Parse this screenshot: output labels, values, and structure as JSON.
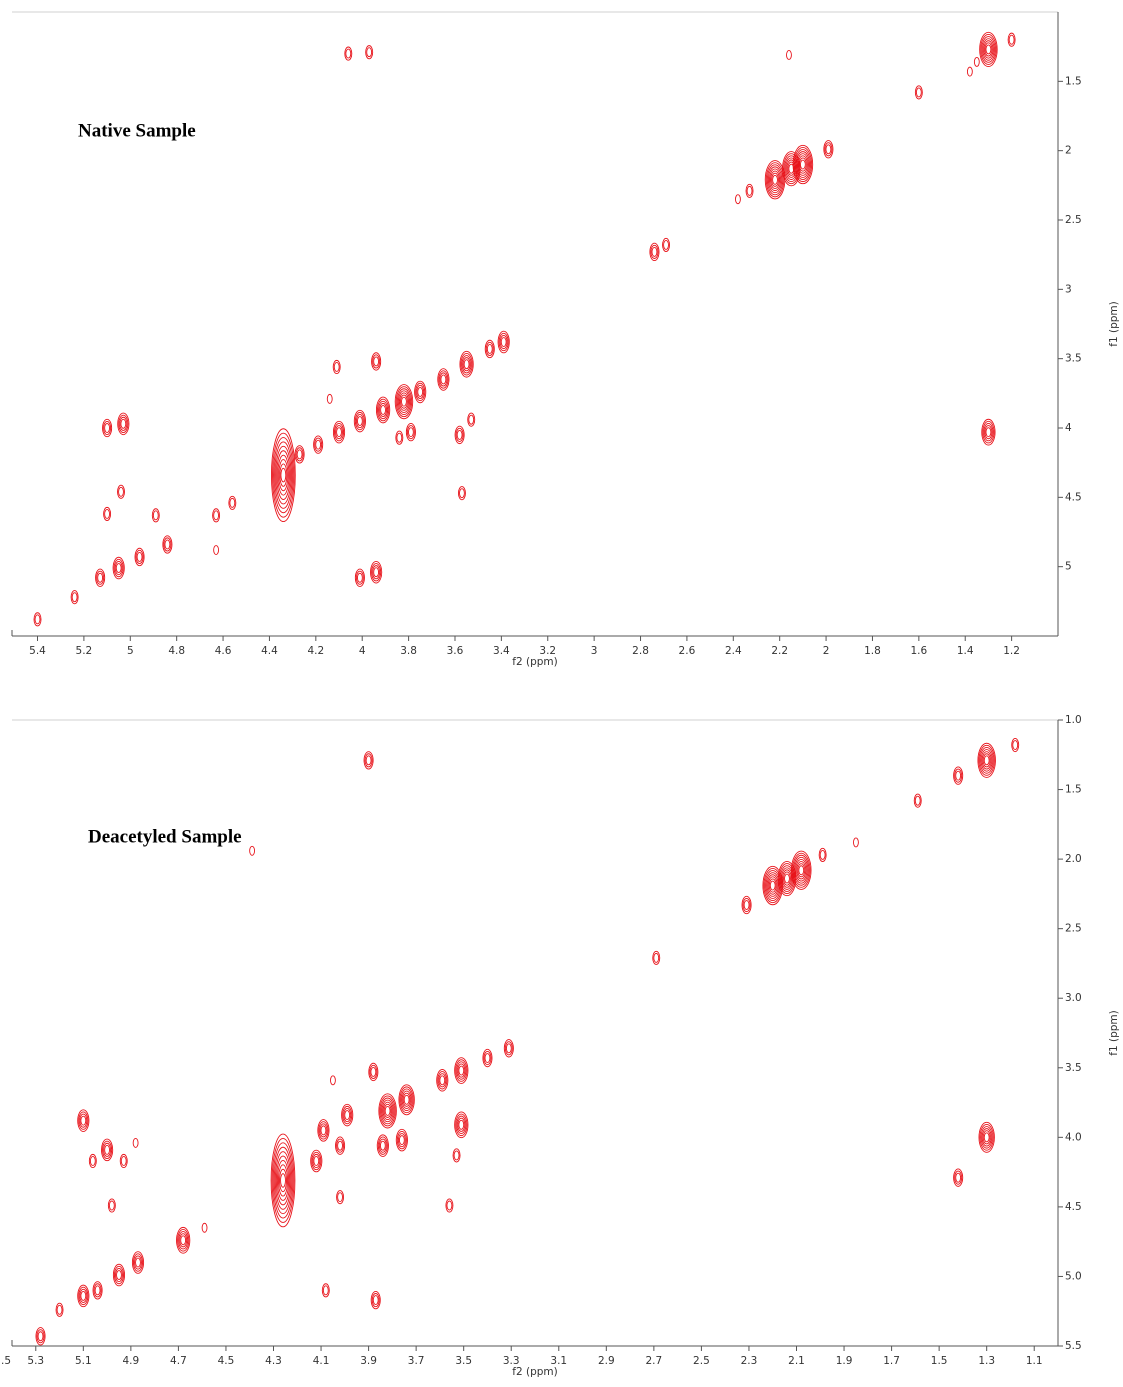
{
  "chart_data": [
    {
      "type": "contour",
      "annotation": "Native Sample",
      "xlabel": "f2 (ppm)",
      "ylabel": "f1 (ppm)",
      "color": "#e8141b",
      "xlim": [
        5.51,
        1.0
      ],
      "ylim": [
        1.0,
        5.5
      ],
      "xticks": [
        5.4,
        5.2,
        5.0,
        4.8,
        4.6,
        4.4,
        4.2,
        4.0,
        3.8,
        3.6,
        3.4,
        3.2,
        3.0,
        2.8,
        2.6,
        2.4,
        2.2,
        2.0,
        1.8,
        1.6,
        1.4,
        1.2
      ],
      "yticks": [
        1.5,
        2.0,
        2.5,
        3.0,
        3.5,
        4.0,
        4.5,
        5.0
      ],
      "x": [
        4.06,
        3.97,
        1.3,
        1.2,
        1.38,
        1.6,
        1.35,
        2.16,
        2.22,
        2.15,
        2.1,
        1.99,
        2.33,
        2.38,
        2.74,
        2.69,
        3.39,
        3.45,
        3.55,
        3.65,
        3.75,
        3.82,
        3.91,
        4.01,
        4.1,
        4.19,
        4.27,
        4.34,
        3.94,
        4.11,
        4.14,
        3.79,
        3.84,
        3.58,
        3.53,
        3.57,
        3.94,
        4.01,
        5.03,
        5.1,
        5.04,
        5.1,
        4.89,
        4.63,
        4.56,
        4.63,
        4.84,
        4.96,
        5.05,
        5.13,
        5.24,
        5.4,
        1.3
      ],
      "y": [
        1.3,
        1.29,
        1.27,
        1.2,
        1.43,
        1.58,
        1.36,
        1.31,
        2.21,
        2.13,
        2.1,
        1.99,
        2.29,
        2.35,
        2.73,
        2.68,
        3.38,
        3.43,
        3.54,
        3.65,
        3.74,
        3.81,
        3.87,
        3.95,
        4.03,
        4.12,
        4.19,
        4.34,
        3.52,
        3.56,
        3.79,
        4.03,
        4.07,
        4.05,
        3.94,
        4.47,
        5.04,
        5.08,
        3.97,
        4.0,
        4.46,
        4.62,
        4.63,
        4.63,
        4.54,
        4.88,
        4.84,
        4.93,
        5.01,
        5.08,
        5.22,
        5.38,
        4.03
      ],
      "intensity": [
        2,
        2,
        7,
        2,
        1,
        2,
        1,
        1,
        8,
        7,
        8,
        3,
        2,
        1,
        3,
        2,
        4,
        3,
        5,
        4,
        4,
        7,
        5,
        4,
        4,
        3,
        3,
        10,
        3,
        2,
        1,
        3,
        2,
        3,
        2,
        2,
        4,
        3,
        4,
        3,
        2,
        2,
        2,
        2,
        2,
        1,
        3,
        3,
        4,
        3,
        2,
        2,
        5
      ]
    },
    {
      "type": "contour",
      "annotation": "Deacetyled Sample",
      "xlabel": "f2 (ppm)",
      "ylabel": "f1 (ppm)",
      "color": "#e8141b",
      "xlim": [
        5.4,
        1.0
      ],
      "ylim": [
        1.0,
        5.5
      ],
      "xticks": [
        {
          "value": 5.5,
          "label": ".5"
        },
        5.3,
        5.1,
        4.9,
        4.7,
        4.5,
        4.3,
        4.1,
        3.9,
        3.7,
        3.5,
        3.3,
        3.1,
        2.9,
        2.7,
        2.5,
        2.3,
        2.1,
        1.9,
        1.7,
        1.5,
        1.3,
        1.1
      ],
      "yticks": [
        {
          "value": 1.0,
          "label": "1.0"
        },
        1.5,
        {
          "value": 2.0,
          "label": "2.0"
        },
        2.5,
        {
          "value": 3.0,
          "label": "3.0"
        },
        3.5,
        {
          "value": 4.0,
          "label": "4.0"
        },
        4.5,
        {
          "value": 5.0,
          "label": "5.0"
        },
        5.5
      ],
      "x": [
        1.3,
        1.18,
        1.42,
        1.59,
        3.9,
        2.2,
        2.14,
        2.08,
        2.31,
        1.99,
        1.85,
        4.39,
        2.69,
        3.31,
        3.4,
        3.51,
        3.59,
        3.74,
        3.82,
        3.88,
        4.05,
        3.99,
        4.09,
        4.02,
        4.12,
        4.26,
        3.51,
        3.84,
        3.76,
        3.53,
        3.56,
        4.02,
        4.08,
        3.87,
        5.1,
        5.06,
        5.0,
        4.93,
        4.88,
        4.98,
        4.68,
        4.59,
        5.28,
        5.2,
        5.1,
        5.04,
        4.95,
        4.87,
        1.3,
        1.42
      ],
      "y": [
        1.29,
        1.18,
        1.4,
        1.58,
        1.29,
        2.19,
        2.14,
        2.08,
        2.33,
        1.97,
        1.88,
        1.94,
        2.71,
        3.36,
        3.43,
        3.52,
        3.59,
        3.73,
        3.81,
        3.53,
        3.59,
        3.84,
        3.95,
        4.06,
        4.17,
        4.31,
        3.91,
        4.06,
        4.02,
        4.13,
        4.49,
        4.43,
        5.1,
        5.17,
        3.88,
        4.17,
        4.09,
        4.17,
        4.04,
        4.49,
        4.74,
        4.65,
        5.43,
        5.24,
        5.14,
        5.1,
        4.99,
        4.9,
        4.0,
        4.29
      ],
      "intensity": [
        7,
        2,
        3,
        2,
        3,
        8,
        7,
        8,
        3,
        2,
        1,
        1,
        2,
        3,
        3,
        5,
        4,
        6,
        7,
        3,
        1,
        4,
        4,
        3,
        4,
        10,
        5,
        4,
        4,
        2,
        2,
        2,
        2,
        3,
        4,
        2,
        4,
        2,
        1,
        2,
        5,
        1,
        3,
        2,
        4,
        3,
        4,
        4,
        6,
        3
      ]
    }
  ]
}
